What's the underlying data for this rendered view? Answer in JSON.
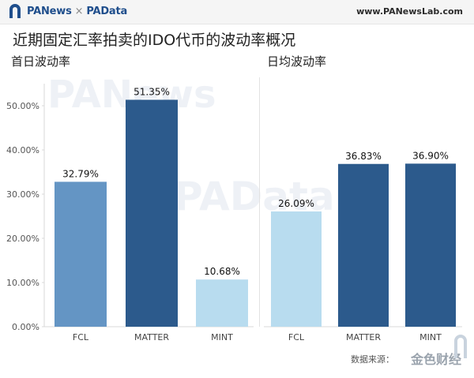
{
  "header": {
    "brand_left": "PANews",
    "brand_sep": "×",
    "brand_right": "PAData",
    "site": "www.PANewsLab.com"
  },
  "title": "近期固定汇率拍卖的IDO代币的波动率概况",
  "source_label": "数据来源：",
  "corner_brand": "金色财经",
  "colors": {
    "FCL_left": "#6495c4",
    "MATTER": "#2c5a8c",
    "MINT": "#b8dcef",
    "FCL_right": "#b8dcef"
  },
  "chart_data": [
    {
      "type": "bar",
      "title": "首日波动率",
      "categories": [
        "FCL",
        "MATTER",
        "MINT"
      ],
      "values": [
        32.79,
        51.35,
        10.68
      ],
      "value_labels": [
        "32.79%",
        "51.35%",
        "10.68%"
      ],
      "bar_colors": [
        "#6495c4",
        "#2c5a8c",
        "#b8dcef"
      ],
      "y_ticks": [
        "0.00%",
        "10.00%",
        "20.00%",
        "30.00%",
        "40.00%",
        "50.00%"
      ],
      "tick_values": [
        0,
        10,
        20,
        30,
        40,
        50
      ],
      "ylim": [
        0,
        55
      ],
      "grid": false
    },
    {
      "type": "bar",
      "title": "日均波动率",
      "categories": [
        "FCL",
        "MATTER",
        "MINT"
      ],
      "values": [
        26.09,
        36.83,
        36.9
      ],
      "value_labels": [
        "26.09%",
        "36.83%",
        "36.90%"
      ],
      "bar_colors": [
        "#b8dcef",
        "#2c5a8c",
        "#2c5a8c"
      ],
      "ylim": [
        0,
        55
      ],
      "grid": false
    }
  ]
}
